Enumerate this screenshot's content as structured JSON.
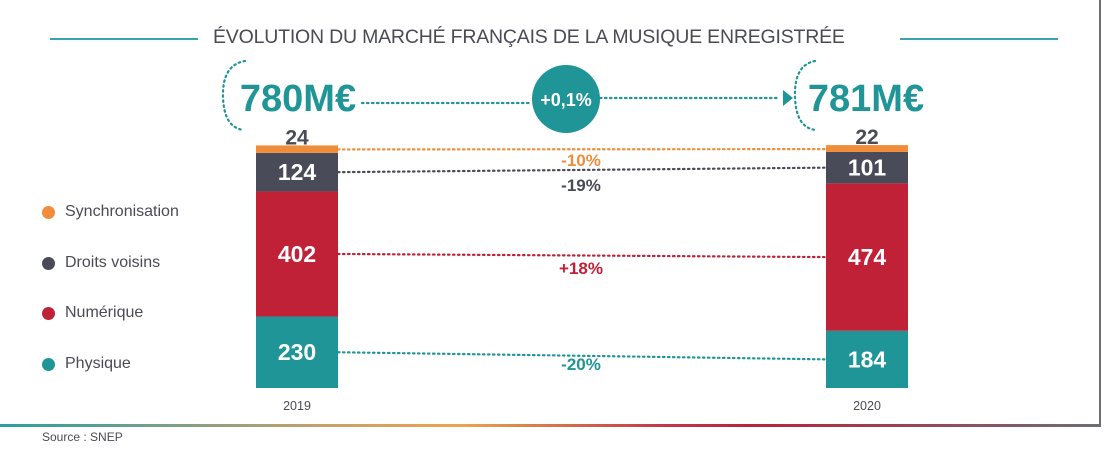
{
  "title": "ÉVOLUTION DU MARCHÉ FRANÇAIS DE LA MUSIQUE ENREGISTRÉE",
  "source": "Source : SNEP",
  "totals": [
    {
      "year": "2019",
      "label": "780M€"
    },
    {
      "year": "2020",
      "label": "781M€"
    }
  ],
  "total_change": "+0,1%",
  "colors": {
    "accent": "#1f9597",
    "Synchronisation": "#ef8d3a",
    "Droits voisins": "#4a4b58",
    "Numérique": "#c12137",
    "Physique": "#1f9597",
    "text": "#4a4b55"
  },
  "legend": [
    {
      "label": "Synchronisation",
      "color": "#ef8d3a"
    },
    {
      "label": "Droits voisins",
      "color": "#4a4b58"
    },
    {
      "label": "Numérique",
      "color": "#c12137"
    },
    {
      "label": "Physique",
      "color": "#1f9597"
    }
  ],
  "chart_data": {
    "type": "bar",
    "stacked": true,
    "title": "ÉVOLUTION DU MARCHÉ FRANÇAIS DE LA MUSIQUE ENREGISTRÉE",
    "categories": [
      "2019",
      "2020"
    ],
    "unit": "M€",
    "series": [
      {
        "name": "Physique",
        "values": [
          230,
          184
        ],
        "change": "-20%",
        "color": "#1f9597"
      },
      {
        "name": "Numérique",
        "values": [
          402,
          474
        ],
        "change": "+18%",
        "color": "#c12137"
      },
      {
        "name": "Droits voisins",
        "values": [
          124,
          101
        ],
        "change": "-19%",
        "color": "#4a4b58"
      },
      {
        "name": "Synchronisation",
        "values": [
          24,
          22
        ],
        "change": "-10%",
        "color": "#ef8d3a"
      }
    ],
    "totals": [
      780,
      781
    ],
    "total_change": "+0,1%",
    "legend_position": "left",
    "grid": false,
    "xlabel": "",
    "ylabel": ""
  }
}
